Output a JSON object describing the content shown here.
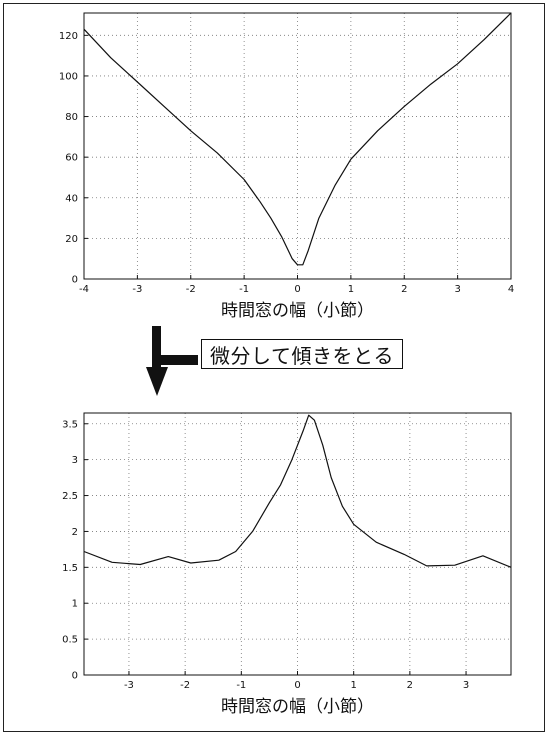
{
  "annotation": "微分して傾きをとる",
  "chart_data": [
    {
      "type": "line",
      "xlabel": "時間窓の幅（小節）",
      "ylabel": "",
      "xlim": [
        -4,
        4
      ],
      "ylim": [
        0,
        131
      ],
      "xticks": [
        -4,
        -3,
        -2,
        -1,
        0,
        1,
        2,
        3,
        4
      ],
      "yticks": [
        0,
        20,
        40,
        60,
        80,
        100,
        120
      ],
      "grid": "dotted",
      "x": [
        -4.0,
        -3.5,
        -3.0,
        -2.5,
        -2.0,
        -1.5,
        -1.0,
        -0.7,
        -0.5,
        -0.3,
        -0.1,
        0.0,
        0.1,
        0.2,
        0.4,
        0.7,
        1.0,
        1.5,
        2.0,
        2.5,
        3.0,
        3.5,
        4.0
      ],
      "y": [
        123,
        109,
        97,
        85,
        73,
        62,
        49,
        38,
        30,
        21,
        10,
        7,
        7,
        14,
        30,
        46,
        59,
        73,
        85,
        96,
        106,
        118,
        131
      ]
    },
    {
      "type": "line",
      "xlabel": "時間窓の幅（小節）",
      "ylabel": "",
      "xlim": [
        -3.8,
        3.8
      ],
      "ylim": [
        0,
        3.65
      ],
      "xticks": [
        -3,
        -2,
        -1,
        0,
        1,
        2,
        3
      ],
      "yticks": [
        0,
        0.5,
        1,
        1.5,
        2,
        2.5,
        3,
        3.5
      ],
      "grid": "dotted",
      "x": [
        -3.8,
        -3.3,
        -2.8,
        -2.3,
        -1.9,
        -1.4,
        -1.1,
        -0.8,
        -0.5,
        -0.3,
        -0.1,
        0.1,
        0.2,
        0.3,
        0.45,
        0.6,
        0.8,
        1.0,
        1.4,
        1.9,
        2.3,
        2.8,
        3.3,
        3.8
      ],
      "y": [
        1.72,
        1.57,
        1.54,
        1.65,
        1.56,
        1.6,
        1.72,
        2.0,
        2.4,
        2.65,
        3.0,
        3.4,
        3.62,
        3.55,
        3.2,
        2.75,
        2.35,
        2.1,
        1.85,
        1.68,
        1.52,
        1.53,
        1.66,
        1.5
      ]
    }
  ]
}
